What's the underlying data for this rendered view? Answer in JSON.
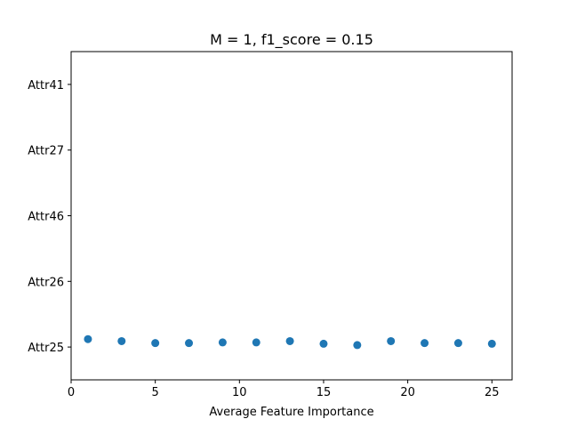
{
  "chart_data": {
    "type": "scatter",
    "title": "M = 1, f1_score = 0.15",
    "xlabel": "Average Feature Importance",
    "ylabel": "",
    "xlim": [
      0,
      26.2
    ],
    "ylim": [
      -0.5,
      4.5
    ],
    "x_ticks": [
      0,
      5,
      10,
      15,
      20,
      25
    ],
    "x_tick_labels": [
      "0",
      "5",
      "10",
      "15",
      "20",
      "25"
    ],
    "y_categories": [
      "Attr25",
      "Attr26",
      "Attr46",
      "Attr27",
      "Attr41"
    ],
    "grid": false,
    "legend": "none",
    "series": [
      {
        "color": "#1f77b4",
        "points": [
          {
            "x": 1,
            "y": 0.12
          },
          {
            "x": 3,
            "y": 0.09
          },
          {
            "x": 5,
            "y": 0.06
          },
          {
            "x": 7,
            "y": 0.06
          },
          {
            "x": 9,
            "y": 0.07
          },
          {
            "x": 11,
            "y": 0.07
          },
          {
            "x": 13,
            "y": 0.09
          },
          {
            "x": 15,
            "y": 0.05
          },
          {
            "x": 17,
            "y": 0.03
          },
          {
            "x": 19,
            "y": 0.09
          },
          {
            "x": 21,
            "y": 0.06
          },
          {
            "x": 23,
            "y": 0.06
          },
          {
            "x": 25,
            "y": 0.05
          }
        ]
      }
    ]
  }
}
